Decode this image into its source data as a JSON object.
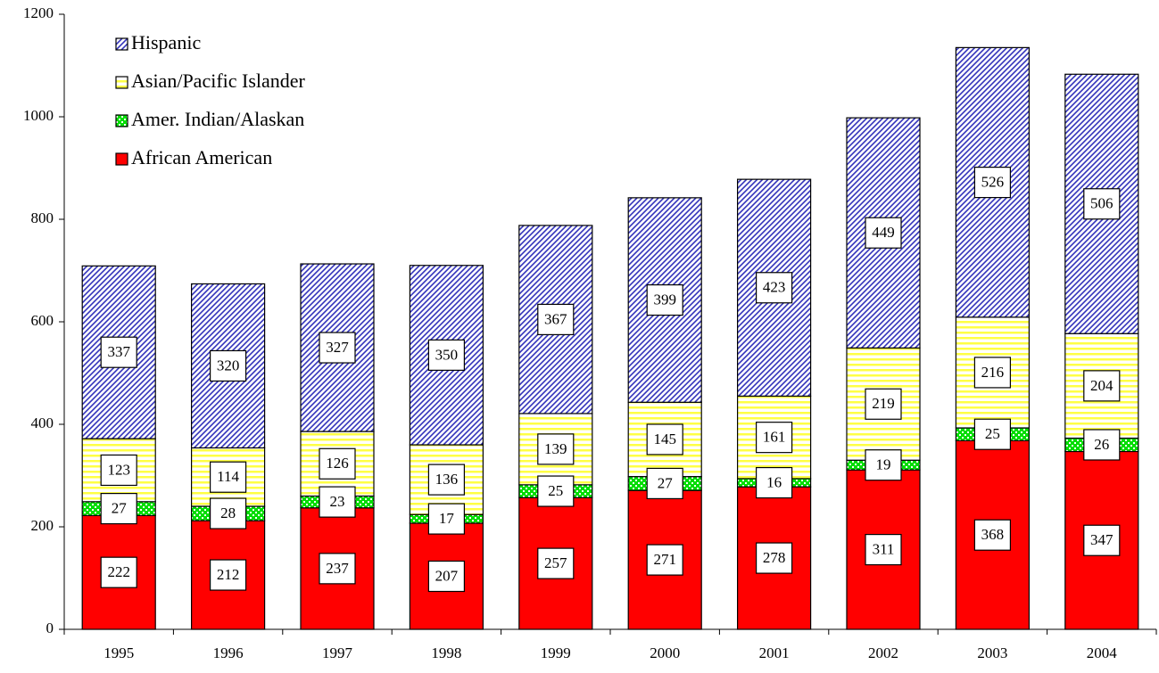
{
  "chart_data": {
    "type": "stacked_bar",
    "categories": [
      "1995",
      "1996",
      "1997",
      "1998",
      "1999",
      "2000",
      "2001",
      "2002",
      "2003",
      "2004"
    ],
    "series": [
      {
        "name": "African American",
        "color": "#ff0000",
        "pattern": "solid",
        "values": [
          222,
          212,
          237,
          207,
          257,
          271,
          278,
          311,
          368,
          347
        ]
      },
      {
        "name": "Amer. Indian/Alaskan",
        "color": "#00dd00",
        "pattern": "dots",
        "values": [
          27,
          28,
          23,
          17,
          25,
          27,
          16,
          19,
          25,
          26
        ]
      },
      {
        "name": "Asian/Pacific Islander",
        "color": "#ffff44",
        "pattern": "horizontal",
        "values": [
          123,
          114,
          126,
          136,
          139,
          145,
          161,
          219,
          216,
          204
        ]
      },
      {
        "name": "Hispanic",
        "color": "#3333bb",
        "pattern": "diagonal",
        "values": [
          337,
          320,
          327,
          350,
          367,
          399,
          423,
          449,
          526,
          506
        ]
      }
    ],
    "ylim": [
      0,
      1200
    ],
    "yticks": [
      0,
      200,
      400,
      600,
      800,
      1000,
      1200
    ],
    "legend": "upper left",
    "data_labels": true
  }
}
